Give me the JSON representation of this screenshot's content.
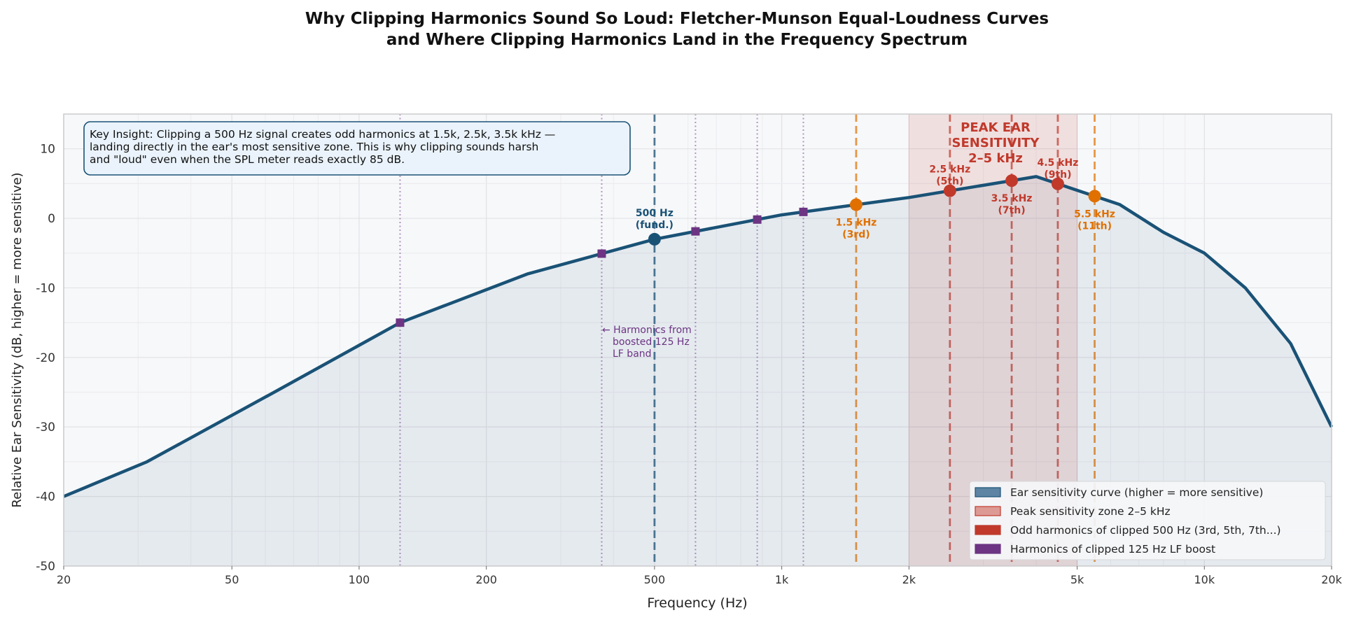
{
  "chart_data": {
    "type": "line",
    "title_lines": [
      "Why Clipping Harmonics Sound So Loud: Fletcher-Munson Equal-Loudness Curves",
      "and Where Clipping Harmonics Land in the Frequency Spectrum"
    ],
    "xlabel": "Frequency (Hz)",
    "ylabel": "Relative Ear Sensitivity (dB, higher = more sensitive)",
    "xscale": "log",
    "xlim": [
      20,
      20000
    ],
    "ylim": [
      -50,
      15
    ],
    "grid": true,
    "x_ticks": [
      20,
      50,
      100,
      200,
      500,
      1000,
      2000,
      5000,
      10000,
      20000
    ],
    "x_tick_labels": [
      "20",
      "50",
      "100",
      "200",
      "500",
      "1k",
      "2k",
      "5k",
      "10k",
      "20k"
    ],
    "y_ticks": [
      -50,
      -40,
      -30,
      -20,
      -10,
      0,
      10
    ],
    "y_tick_labels": [
      "-50",
      "-40",
      "-30",
      "-20",
      "-10",
      "0",
      "10"
    ],
    "curve": {
      "x": [
        20,
        31.5,
        63,
        125,
        250,
        500,
        1000,
        2000,
        4000,
        6300,
        8000,
        10000,
        12500,
        16000,
        20000
      ],
      "y": [
        -40,
        -35,
        -25,
        -15,
        -8,
        -3,
        0.5,
        3,
        6,
        2,
        -2,
        -5,
        -10,
        -18,
        -30
      ],
      "color": "#1a5276"
    },
    "peak_zone": {
      "x": [
        2000,
        5000
      ],
      "color": "#c0392b",
      "label_lines": [
        "PEAK EAR",
        "SENSITIVITY",
        "2–5 kHz"
      ]
    },
    "fundamental": {
      "freq": 500,
      "label_lines": [
        "500 Hz",
        "(fund.)"
      ],
      "color": "#1a5276"
    },
    "odd_harmonics": [
      {
        "freq": 1500,
        "label_lines": [
          "1.5 kHz",
          "(3rd)"
        ],
        "color": "#e07000",
        "label_pos": "below"
      },
      {
        "freq": 2500,
        "label_lines": [
          "2.5 kHz",
          "(5th)"
        ],
        "color": "#c0392b",
        "label_pos": "above"
      },
      {
        "freq": 3500,
        "label_lines": [
          "3.5 kHz",
          "(7th)"
        ],
        "color": "#c0392b",
        "label_pos": "below"
      },
      {
        "freq": 4500,
        "label_lines": [
          "4.5 kHz",
          "(9th)"
        ],
        "color": "#c0392b",
        "label_pos": "above"
      },
      {
        "freq": 5500,
        "label_lines": [
          "5.5 kHz",
          "(11th)"
        ],
        "color": "#e07000",
        "label_pos": "below"
      }
    ],
    "lf_harmonics": {
      "freqs": [
        125,
        375,
        625,
        875,
        1125
      ],
      "color": "#6c3483",
      "label_lines": [
        "← Harmonics from",
        "boosted 125 Hz",
        "LF band"
      ]
    },
    "insight_lines": [
      "Key Insight: Clipping a 500 Hz signal creates odd harmonics at 1.5k, 2.5k, 3.5k kHz —",
      "landing directly in the ear's most sensitive zone. This is why clipping sounds harsh",
      "and \"loud\" even when the SPL meter reads exactly 85 dB."
    ],
    "legend": {
      "position": "lower-right",
      "entries": [
        {
          "label": "Ear sensitivity curve (higher = more sensitive)",
          "color": "#5d84a3",
          "edge": "#1a5276"
        },
        {
          "label": "Peak sensitivity zone 2–5 kHz",
          "color": "#dd9a95",
          "edge": "#c0392b"
        },
        {
          "label": "Odd harmonics of clipped 500 Hz (3rd, 5th, 7th...)",
          "color": "#c0392b",
          "edge": "#c0392b"
        },
        {
          "label": "Harmonics of clipped 125 Hz LF boost",
          "color": "#6c3483",
          "edge": "#6c3483"
        }
      ]
    }
  }
}
